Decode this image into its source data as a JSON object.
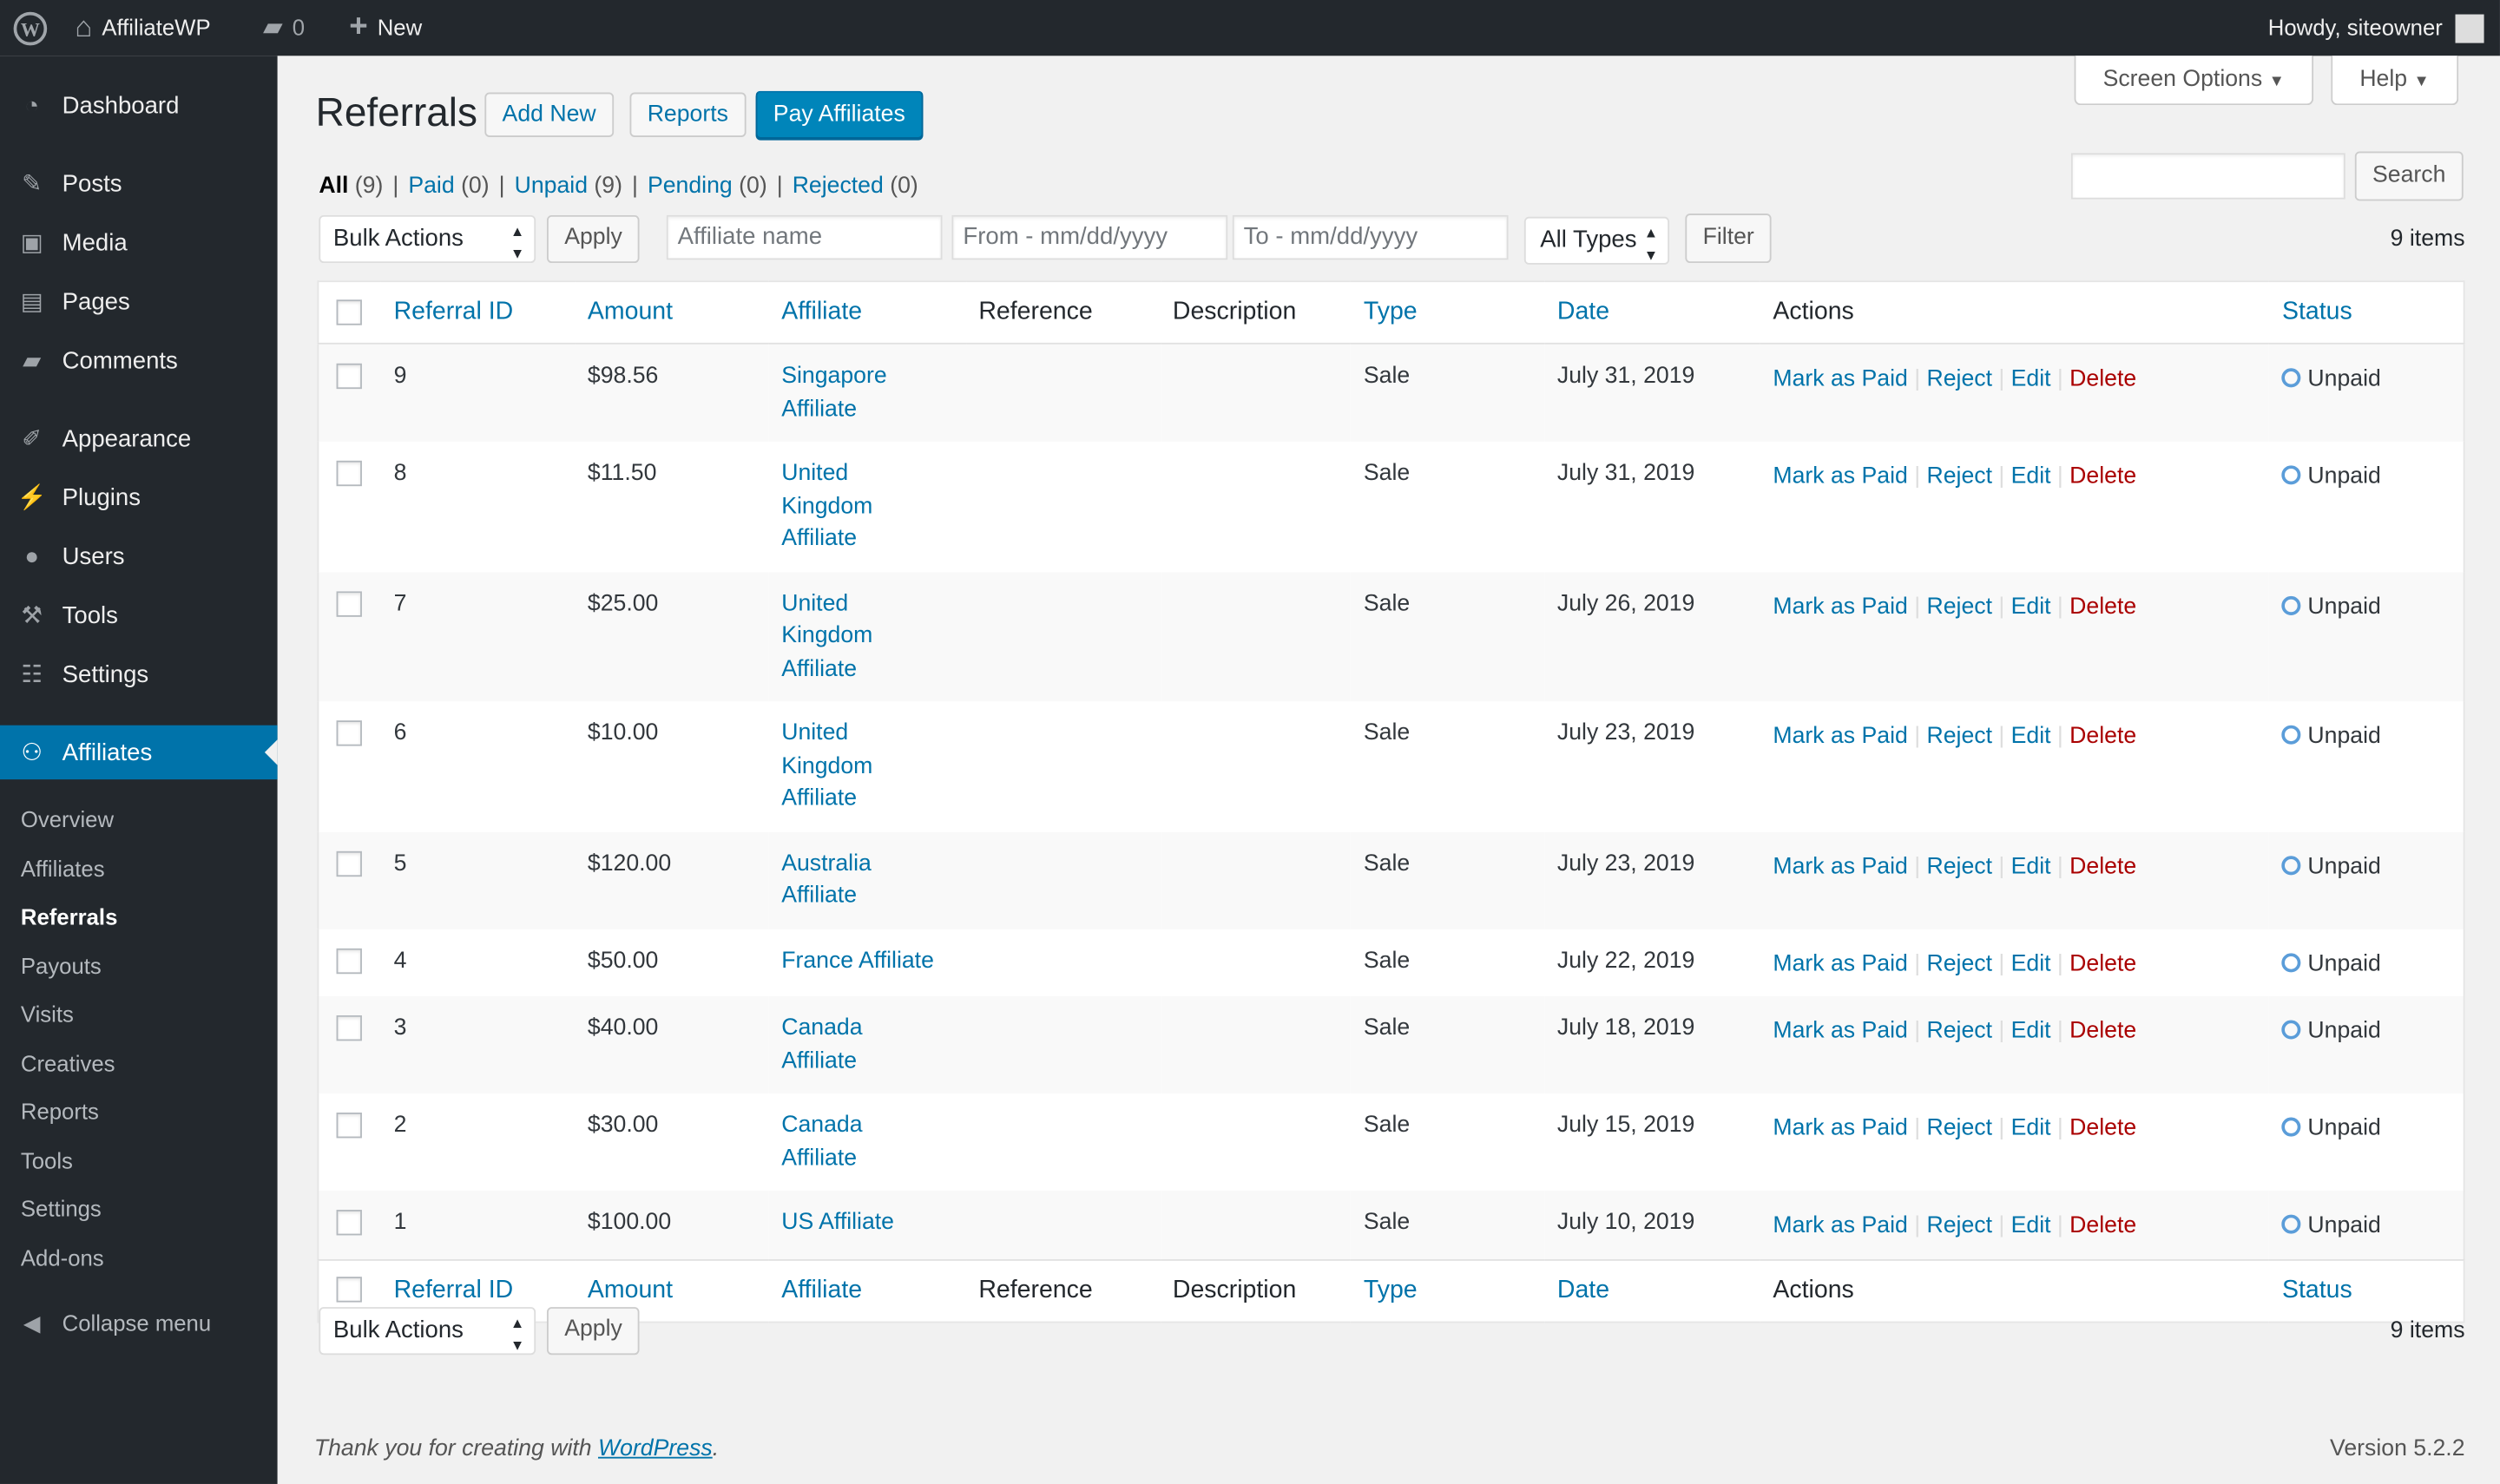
{
  "adminbar": {
    "site": "AffiliateWP",
    "comments": "0",
    "new": "New",
    "howdy": "Howdy, siteowner"
  },
  "sidebar": {
    "items": [
      {
        "label": "Dashboard",
        "icon": "dashboard-icon",
        "glyph": "◔"
      },
      {
        "label": "Posts",
        "icon": "pin-icon",
        "glyph": "✎"
      },
      {
        "label": "Media",
        "icon": "media-icon",
        "glyph": "▣"
      },
      {
        "label": "Pages",
        "icon": "pages-icon",
        "glyph": "▤"
      },
      {
        "label": "Comments",
        "icon": "comment-icon",
        "glyph": "▰"
      },
      {
        "label": "Appearance",
        "icon": "brush-icon",
        "glyph": "✐"
      },
      {
        "label": "Plugins",
        "icon": "plugin-icon",
        "glyph": "⚡"
      },
      {
        "label": "Users",
        "icon": "user-icon",
        "glyph": "●"
      },
      {
        "label": "Tools",
        "icon": "wrench-icon",
        "glyph": "⚒"
      },
      {
        "label": "Settings",
        "icon": "settings-icon",
        "glyph": "☷"
      },
      {
        "label": "Affiliates",
        "icon": "affiliates-icon",
        "glyph": "⚇"
      }
    ],
    "submenu": [
      "Overview",
      "Affiliates",
      "Referrals",
      "Payouts",
      "Visits",
      "Creatives",
      "Reports",
      "Tools",
      "Settings",
      "Add-ons"
    ],
    "collapse": "Collapse menu"
  },
  "page": {
    "title": "Referrals",
    "add_new": "Add New",
    "reports": "Reports",
    "pay": "Pay Affiliates",
    "screen_options": "Screen Options",
    "help": "Help",
    "filters": [
      {
        "label": "All",
        "count": "(9)"
      },
      {
        "label": "Paid",
        "count": "(0)"
      },
      {
        "label": "Unpaid",
        "count": "(9)"
      },
      {
        "label": "Pending",
        "count": "(0)"
      },
      {
        "label": "Rejected",
        "count": "(0)"
      }
    ],
    "search_button": "Search",
    "search_value": "",
    "bulk": "Bulk Actions",
    "apply": "Apply",
    "affiliate_placeholder": "Affiliate name",
    "from_placeholder": "From - mm/dd/yyyy",
    "to_placeholder": "To - mm/dd/yyyy",
    "types": "All Types",
    "filter": "Filter",
    "items": "9 items"
  },
  "table": {
    "columns": [
      "Referral ID",
      "Amount",
      "Affiliate",
      "Reference",
      "Description",
      "Type",
      "Date",
      "Actions",
      "Status"
    ],
    "actions": {
      "paid": "Mark as Paid",
      "reject": "Reject",
      "edit": "Edit",
      "delete": "Delete"
    },
    "rows": [
      {
        "id": "9",
        "amount": "$98.56",
        "affiliate": "Singapore Affiliate",
        "type": "Sale",
        "date": "July 31, 2019",
        "status": "Unpaid"
      },
      {
        "id": "8",
        "amount": "$11.50",
        "affiliate": "United Kingdom Affiliate",
        "type": "Sale",
        "date": "July 31, 2019",
        "status": "Unpaid"
      },
      {
        "id": "7",
        "amount": "$25.00",
        "affiliate": "United Kingdom Affiliate",
        "type": "Sale",
        "date": "July 26, 2019",
        "status": "Unpaid"
      },
      {
        "id": "6",
        "amount": "$10.00",
        "affiliate": "United Kingdom Affiliate",
        "type": "Sale",
        "date": "July 23, 2019",
        "status": "Unpaid"
      },
      {
        "id": "5",
        "amount": "$120.00",
        "affiliate": "Australia Affiliate",
        "type": "Sale",
        "date": "July 23, 2019",
        "status": "Unpaid"
      },
      {
        "id": "4",
        "amount": "$50.00",
        "affiliate": "France Affiliate",
        "type": "Sale",
        "date": "July 22, 2019",
        "status": "Unpaid"
      },
      {
        "id": "3",
        "amount": "$40.00",
        "affiliate": "Canada Affiliate",
        "type": "Sale",
        "date": "July 18, 2019",
        "status": "Unpaid"
      },
      {
        "id": "2",
        "amount": "$30.00",
        "affiliate": "Canada Affiliate",
        "type": "Sale",
        "date": "July 15, 2019",
        "status": "Unpaid"
      },
      {
        "id": "1",
        "amount": "$100.00",
        "affiliate": "US Affiliate",
        "type": "Sale",
        "date": "July 10, 2019",
        "status": "Unpaid"
      }
    ]
  },
  "footer": {
    "thanks": "Thank you for creating with ",
    "wp": "WordPress",
    "period": ".",
    "version": "Version 5.2.2"
  },
  "colors": {
    "accent": "#0073aa",
    "delete": "#a00",
    "unpaid": "#5b9dd9",
    "adminbar": "#23282d"
  }
}
